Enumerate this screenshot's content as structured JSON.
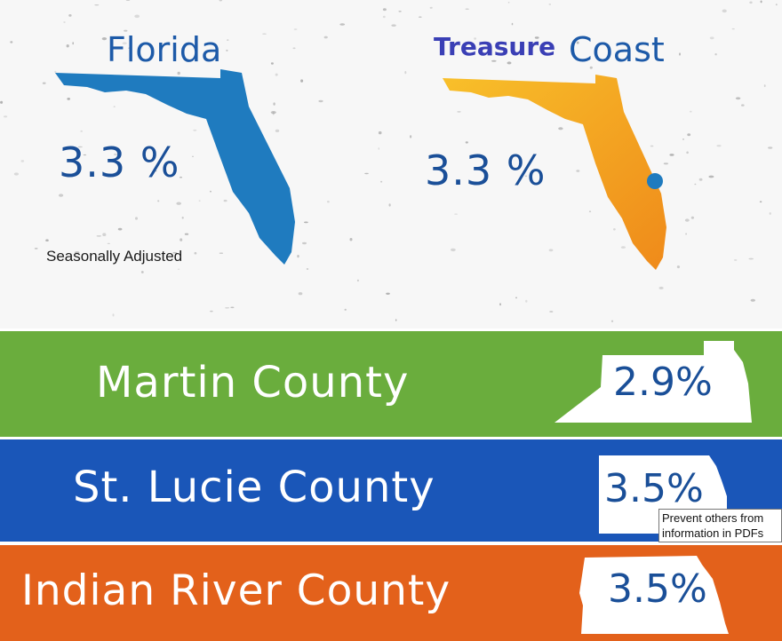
{
  "florida": {
    "title": "Florida",
    "rate": "3.3 %",
    "note": "Seasonally Adjusted",
    "map_color": "#1f7bbf"
  },
  "treasure_coast": {
    "title_part1": "Treasure",
    "title_part2": "Coast",
    "rate": "3.3 %",
    "map_color": "#f5a21c",
    "marker_color": "#1f7bbf"
  },
  "counties": [
    {
      "name": "Martin County",
      "rate": "2.9%",
      "color": "#6aad3d"
    },
    {
      "name": "St. Lucie County",
      "rate": "3.5%",
      "color": "#1a56b8"
    },
    {
      "name": "Indian River County",
      "rate": "3.5%",
      "color": "#e3611b"
    }
  ],
  "tooltip": {
    "line1": "Prevent others from",
    "line2": "information in PDFs"
  }
}
